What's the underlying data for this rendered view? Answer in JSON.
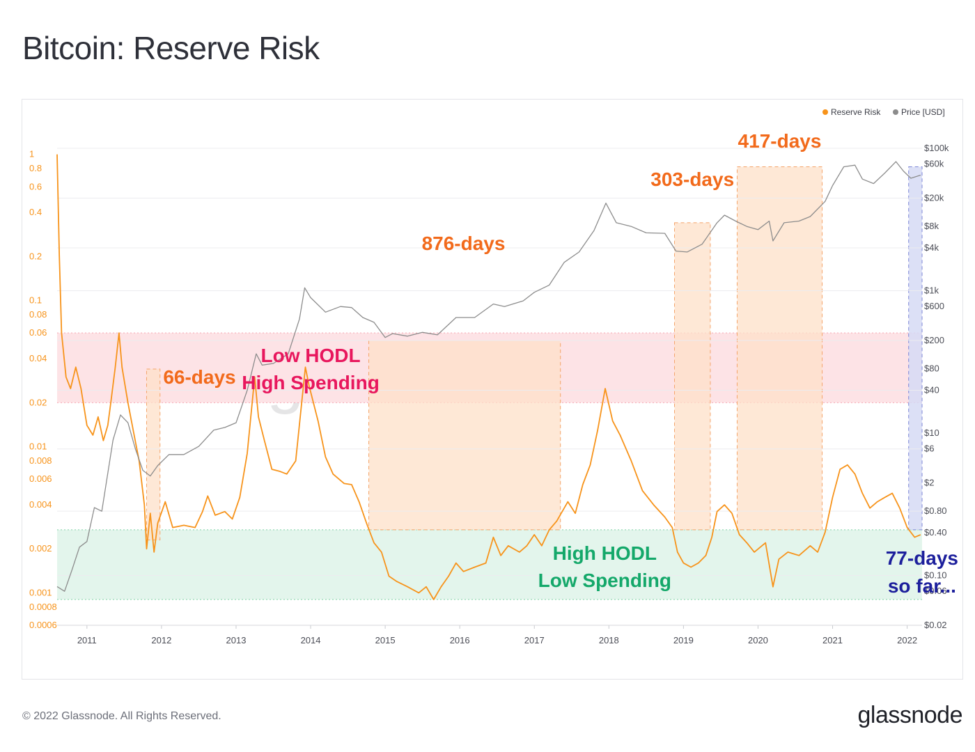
{
  "page": {
    "title": "Bitcoin: Reserve Risk",
    "copyright": "© 2022 Glassnode. All Rights Reserved.",
    "brand": "glassnode",
    "watermark": "glassnode"
  },
  "colors": {
    "reserve_risk": "#f7931a",
    "price": "#8c8c8c",
    "band_high": "#fde3e6",
    "band_low": "#e3f5ec",
    "box_orange": "#fde0c8",
    "box_blue": "#d6dbf4",
    "label_orange": "#f26a1b",
    "label_red": "#e8175d",
    "label_green": "#14a86a",
    "label_blue": "#1c1f9c"
  },
  "chart_data": {
    "type": "line",
    "legend": [
      "Reserve Risk",
      "Price [USD]"
    ],
    "legend_position": "top-right",
    "x_ticks": [
      "2011",
      "2012",
      "2013",
      "2014",
      "2015",
      "2016",
      "2017",
      "2018",
      "2019",
      "2020",
      "2021",
      "2022"
    ],
    "x_range": [
      2010.6,
      2022.2
    ],
    "y_left": {
      "label": "",
      "scale": "log",
      "range": [
        0.0006,
        1.1
      ],
      "ticks": [
        {
          "v": 1,
          "t": "1"
        },
        {
          "v": 0.8,
          "t": "0.8"
        },
        {
          "v": 0.6,
          "t": "0.6"
        },
        {
          "v": 0.4,
          "t": "0.4"
        },
        {
          "v": 0.2,
          "t": "0.2"
        },
        {
          "v": 0.1,
          "t": "0.1"
        },
        {
          "v": 0.08,
          "t": "0.08"
        },
        {
          "v": 0.06,
          "t": "0.06"
        },
        {
          "v": 0.04,
          "t": "0.04"
        },
        {
          "v": 0.02,
          "t": "0.02"
        },
        {
          "v": 0.01,
          "t": "0.01"
        },
        {
          "v": 0.008,
          "t": "0.008"
        },
        {
          "v": 0.006,
          "t": "0.006"
        },
        {
          "v": 0.004,
          "t": "0.004"
        },
        {
          "v": 0.002,
          "t": "0.002"
        },
        {
          "v": 0.001,
          "t": "0.001"
        },
        {
          "v": 0.0008,
          "t": "0.0008"
        },
        {
          "v": 0.0006,
          "t": "0.0006"
        }
      ]
    },
    "y_right": {
      "label": "",
      "scale": "log",
      "range": [
        0.02,
        100000
      ],
      "ticks": [
        {
          "v": 100000,
          "t": "$100k"
        },
        {
          "v": 60000,
          "t": "$60k"
        },
        {
          "v": 20000,
          "t": "$20k"
        },
        {
          "v": 8000,
          "t": "$8k"
        },
        {
          "v": 4000,
          "t": "$4k"
        },
        {
          "v": 1000,
          "t": "$1k"
        },
        {
          "v": 600,
          "t": "$600"
        },
        {
          "v": 200,
          "t": "$200"
        },
        {
          "v": 80,
          "t": "$80"
        },
        {
          "v": 40,
          "t": "$40"
        },
        {
          "v": 10,
          "t": "$10"
        },
        {
          "v": 6,
          "t": "$6"
        },
        {
          "v": 2,
          "t": "$2"
        },
        {
          "v": 0.8,
          "t": "$0.80"
        },
        {
          "v": 0.4,
          "t": "$0.40"
        },
        {
          "v": 0.1,
          "t": "$0.10"
        },
        {
          "v": 0.06,
          "t": "$0.06"
        },
        {
          "v": 0.02,
          "t": "$0.02"
        }
      ]
    },
    "series": [
      {
        "name": "Reserve Risk",
        "axis": "left",
        "points": [
          [
            2010.6,
            1.0
          ],
          [
            2010.63,
            0.2
          ],
          [
            2010.66,
            0.06
          ],
          [
            2010.72,
            0.03
          ],
          [
            2010.78,
            0.025
          ],
          [
            2010.85,
            0.035
          ],
          [
            2010.92,
            0.025
          ],
          [
            2011.0,
            0.014
          ],
          [
            2011.08,
            0.012
          ],
          [
            2011.15,
            0.016
          ],
          [
            2011.22,
            0.011
          ],
          [
            2011.28,
            0.014
          ],
          [
            2011.32,
            0.02
          ],
          [
            2011.38,
            0.035
          ],
          [
            2011.43,
            0.06
          ],
          [
            2011.47,
            0.035
          ],
          [
            2011.55,
            0.02
          ],
          [
            2011.62,
            0.013
          ],
          [
            2011.7,
            0.008
          ],
          [
            2011.77,
            0.004
          ],
          [
            2011.8,
            0.002
          ],
          [
            2011.85,
            0.0035
          ],
          [
            2011.9,
            0.0019
          ],
          [
            2011.95,
            0.003
          ],
          [
            2012.05,
            0.0042
          ],
          [
            2012.15,
            0.0028
          ],
          [
            2012.3,
            0.0029
          ],
          [
            2012.45,
            0.0028
          ],
          [
            2012.55,
            0.0036
          ],
          [
            2012.62,
            0.0046
          ],
          [
            2012.72,
            0.0034
          ],
          [
            2012.85,
            0.0036
          ],
          [
            2012.95,
            0.0032
          ],
          [
            2013.05,
            0.0045
          ],
          [
            2013.15,
            0.009
          ],
          [
            2013.25,
            0.03
          ],
          [
            2013.3,
            0.016
          ],
          [
            2013.38,
            0.011
          ],
          [
            2013.48,
            0.007
          ],
          [
            2013.58,
            0.0068
          ],
          [
            2013.68,
            0.0065
          ],
          [
            2013.8,
            0.008
          ],
          [
            2013.88,
            0.02
          ],
          [
            2013.93,
            0.035
          ],
          [
            2013.98,
            0.026
          ],
          [
            2014.1,
            0.015
          ],
          [
            2014.2,
            0.0085
          ],
          [
            2014.3,
            0.0065
          ],
          [
            2014.45,
            0.0056
          ],
          [
            2014.55,
            0.0055
          ],
          [
            2014.65,
            0.0042
          ],
          [
            2014.75,
            0.003
          ],
          [
            2014.85,
            0.0022
          ],
          [
            2014.95,
            0.0019
          ],
          [
            2015.05,
            0.0013
          ],
          [
            2015.15,
            0.0012
          ],
          [
            2015.3,
            0.0011
          ],
          [
            2015.45,
            0.001
          ],
          [
            2015.55,
            0.0011
          ],
          [
            2015.65,
            0.0009
          ],
          [
            2015.75,
            0.0011
          ],
          [
            2015.85,
            0.0013
          ],
          [
            2015.95,
            0.0016
          ],
          [
            2016.05,
            0.0014
          ],
          [
            2016.2,
            0.0015
          ],
          [
            2016.35,
            0.0016
          ],
          [
            2016.45,
            0.0024
          ],
          [
            2016.55,
            0.0018
          ],
          [
            2016.65,
            0.0021
          ],
          [
            2016.8,
            0.0019
          ],
          [
            2016.9,
            0.0021
          ],
          [
            2017.0,
            0.0025
          ],
          [
            2017.1,
            0.0021
          ],
          [
            2017.2,
            0.0027
          ],
          [
            2017.3,
            0.0031
          ],
          [
            2017.45,
            0.0042
          ],
          [
            2017.55,
            0.0035
          ],
          [
            2017.65,
            0.0055
          ],
          [
            2017.75,
            0.0075
          ],
          [
            2017.85,
            0.013
          ],
          [
            2017.95,
            0.025
          ],
          [
            2018.05,
            0.015
          ],
          [
            2018.15,
            0.012
          ],
          [
            2018.3,
            0.008
          ],
          [
            2018.45,
            0.005
          ],
          [
            2018.6,
            0.004
          ],
          [
            2018.75,
            0.0033
          ],
          [
            2018.85,
            0.0028
          ],
          [
            2018.92,
            0.0019
          ],
          [
            2019.0,
            0.0016
          ],
          [
            2019.1,
            0.0015
          ],
          [
            2019.2,
            0.0016
          ],
          [
            2019.3,
            0.0018
          ],
          [
            2019.38,
            0.0024
          ],
          [
            2019.45,
            0.0036
          ],
          [
            2019.55,
            0.004
          ],
          [
            2019.65,
            0.0035
          ],
          [
            2019.75,
            0.0025
          ],
          [
            2019.85,
            0.0022
          ],
          [
            2019.95,
            0.0019
          ],
          [
            2020.1,
            0.0022
          ],
          [
            2020.2,
            0.0011
          ],
          [
            2020.28,
            0.0017
          ],
          [
            2020.4,
            0.0019
          ],
          [
            2020.55,
            0.0018
          ],
          [
            2020.7,
            0.0021
          ],
          [
            2020.8,
            0.0019
          ],
          [
            2020.9,
            0.0026
          ],
          [
            2021.0,
            0.0045
          ],
          [
            2021.1,
            0.007
          ],
          [
            2021.2,
            0.0075
          ],
          [
            2021.3,
            0.0065
          ],
          [
            2021.4,
            0.0048
          ],
          [
            2021.5,
            0.0038
          ],
          [
            2021.6,
            0.0042
          ],
          [
            2021.7,
            0.0045
          ],
          [
            2021.8,
            0.0048
          ],
          [
            2021.9,
            0.0038
          ],
          [
            2022.0,
            0.0028
          ],
          [
            2022.1,
            0.0024
          ],
          [
            2022.18,
            0.0025
          ]
        ]
      },
      {
        "name": "Price [USD]",
        "axis": "right",
        "points": [
          [
            2010.6,
            0.07
          ],
          [
            2010.7,
            0.06
          ],
          [
            2010.8,
            0.12
          ],
          [
            2010.9,
            0.25
          ],
          [
            2011.0,
            0.3
          ],
          [
            2011.1,
            0.9
          ],
          [
            2011.2,
            0.8
          ],
          [
            2011.35,
            8
          ],
          [
            2011.45,
            18
          ],
          [
            2011.55,
            14
          ],
          [
            2011.65,
            6
          ],
          [
            2011.75,
            3
          ],
          [
            2011.85,
            2.5
          ],
          [
            2011.95,
            3.5
          ],
          [
            2012.1,
            5
          ],
          [
            2012.3,
            5
          ],
          [
            2012.5,
            6.5
          ],
          [
            2012.7,
            11
          ],
          [
            2012.85,
            12
          ],
          [
            2013.0,
            14
          ],
          [
            2013.15,
            40
          ],
          [
            2013.27,
            130
          ],
          [
            2013.35,
            90
          ],
          [
            2013.5,
            95
          ],
          [
            2013.7,
            130
          ],
          [
            2013.85,
            400
          ],
          [
            2013.92,
            1100
          ],
          [
            2014.0,
            800
          ],
          [
            2014.2,
            500
          ],
          [
            2014.4,
            600
          ],
          [
            2014.55,
            580
          ],
          [
            2014.7,
            420
          ],
          [
            2014.85,
            360
          ],
          [
            2015.0,
            220
          ],
          [
            2015.1,
            250
          ],
          [
            2015.3,
            230
          ],
          [
            2015.5,
            260
          ],
          [
            2015.7,
            240
          ],
          [
            2015.8,
            300
          ],
          [
            2015.95,
            420
          ],
          [
            2016.2,
            420
          ],
          [
            2016.45,
            650
          ],
          [
            2016.6,
            600
          ],
          [
            2016.85,
            720
          ],
          [
            2017.0,
            950
          ],
          [
            2017.2,
            1200
          ],
          [
            2017.4,
            2500
          ],
          [
            2017.6,
            3500
          ],
          [
            2017.8,
            7000
          ],
          [
            2017.96,
            17000
          ],
          [
            2018.1,
            9000
          ],
          [
            2018.3,
            8000
          ],
          [
            2018.5,
            6500
          ],
          [
            2018.75,
            6400
          ],
          [
            2018.9,
            3600
          ],
          [
            2019.05,
            3500
          ],
          [
            2019.25,
            4500
          ],
          [
            2019.45,
            9000
          ],
          [
            2019.55,
            11500
          ],
          [
            2019.7,
            9500
          ],
          [
            2019.85,
            8000
          ],
          [
            2020.0,
            7200
          ],
          [
            2020.15,
            9500
          ],
          [
            2020.2,
            5000
          ],
          [
            2020.35,
            9000
          ],
          [
            2020.55,
            9500
          ],
          [
            2020.7,
            11000
          ],
          [
            2020.9,
            18000
          ],
          [
            2021.0,
            30000
          ],
          [
            2021.15,
            55000
          ],
          [
            2021.3,
            58000
          ],
          [
            2021.4,
            37000
          ],
          [
            2021.55,
            32000
          ],
          [
            2021.7,
            45000
          ],
          [
            2021.85,
            65000
          ],
          [
            2021.95,
            48000
          ],
          [
            2022.05,
            38000
          ],
          [
            2022.18,
            42000
          ]
        ]
      }
    ],
    "bands": [
      {
        "label": "Low HODL\nHigh Spending",
        "from": 0.02,
        "to": 0.06
      },
      {
        "label": "High HODL\nLow Spending",
        "from": 0.0009,
        "to": 0.0027
      }
    ],
    "annotations": [
      {
        "label": "66-days",
        "x0": 2011.8,
        "x1": 2011.98
      },
      {
        "label": "876-days",
        "x0": 2014.78,
        "x1": 2017.35
      },
      {
        "label": "303-days",
        "x0": 2018.88,
        "x1": 2019.36
      },
      {
        "label": "417-days",
        "x0": 2019.72,
        "x1": 2020.86
      },
      {
        "label": "77-days\nso far...",
        "x0": 2022.02,
        "x1": 2022.2
      }
    ]
  }
}
